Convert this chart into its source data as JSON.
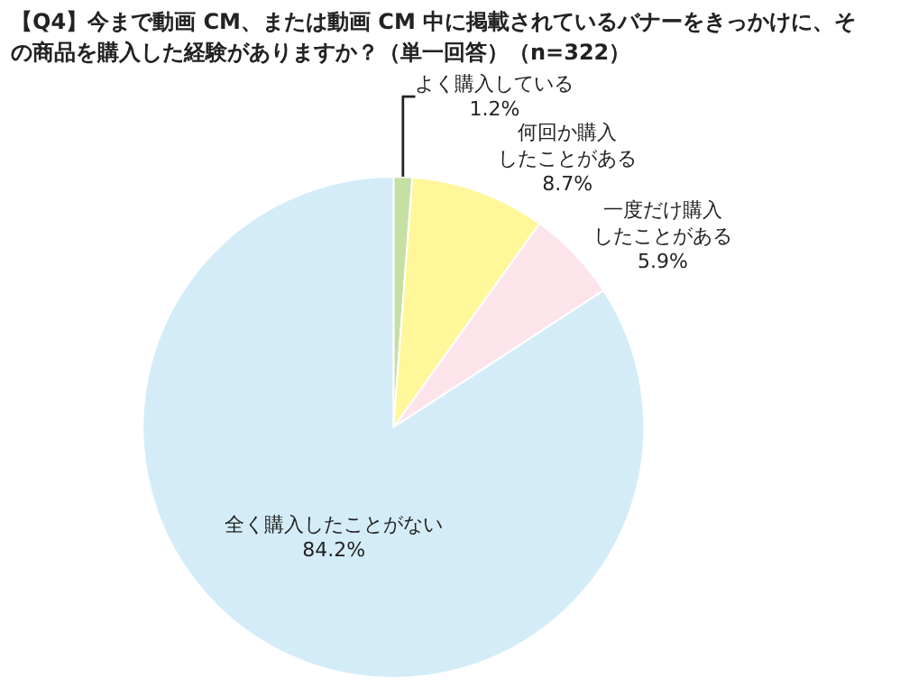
{
  "chart_data": {
    "type": "pie",
    "title": "【Q4】今まで動画 CM、または動画 CM 中に掲載されているバナーをきっかけに、その商品を購入した経験がありますか？（単一回答）（n=322）",
    "categories": [
      "よく購入している",
      "何回か購入したことがある",
      "一度だけ購入したことがある",
      "全く購入したことがない"
    ],
    "values": [
      1.2,
      8.7,
      5.9,
      84.2
    ],
    "value_labels": [
      "1.2%",
      "8.7%",
      "5.9%",
      "84.2%"
    ],
    "colors": [
      "#c6e0a4",
      "#fff799",
      "#fde3ea",
      "#d4ecf7"
    ],
    "legend": false
  }
}
